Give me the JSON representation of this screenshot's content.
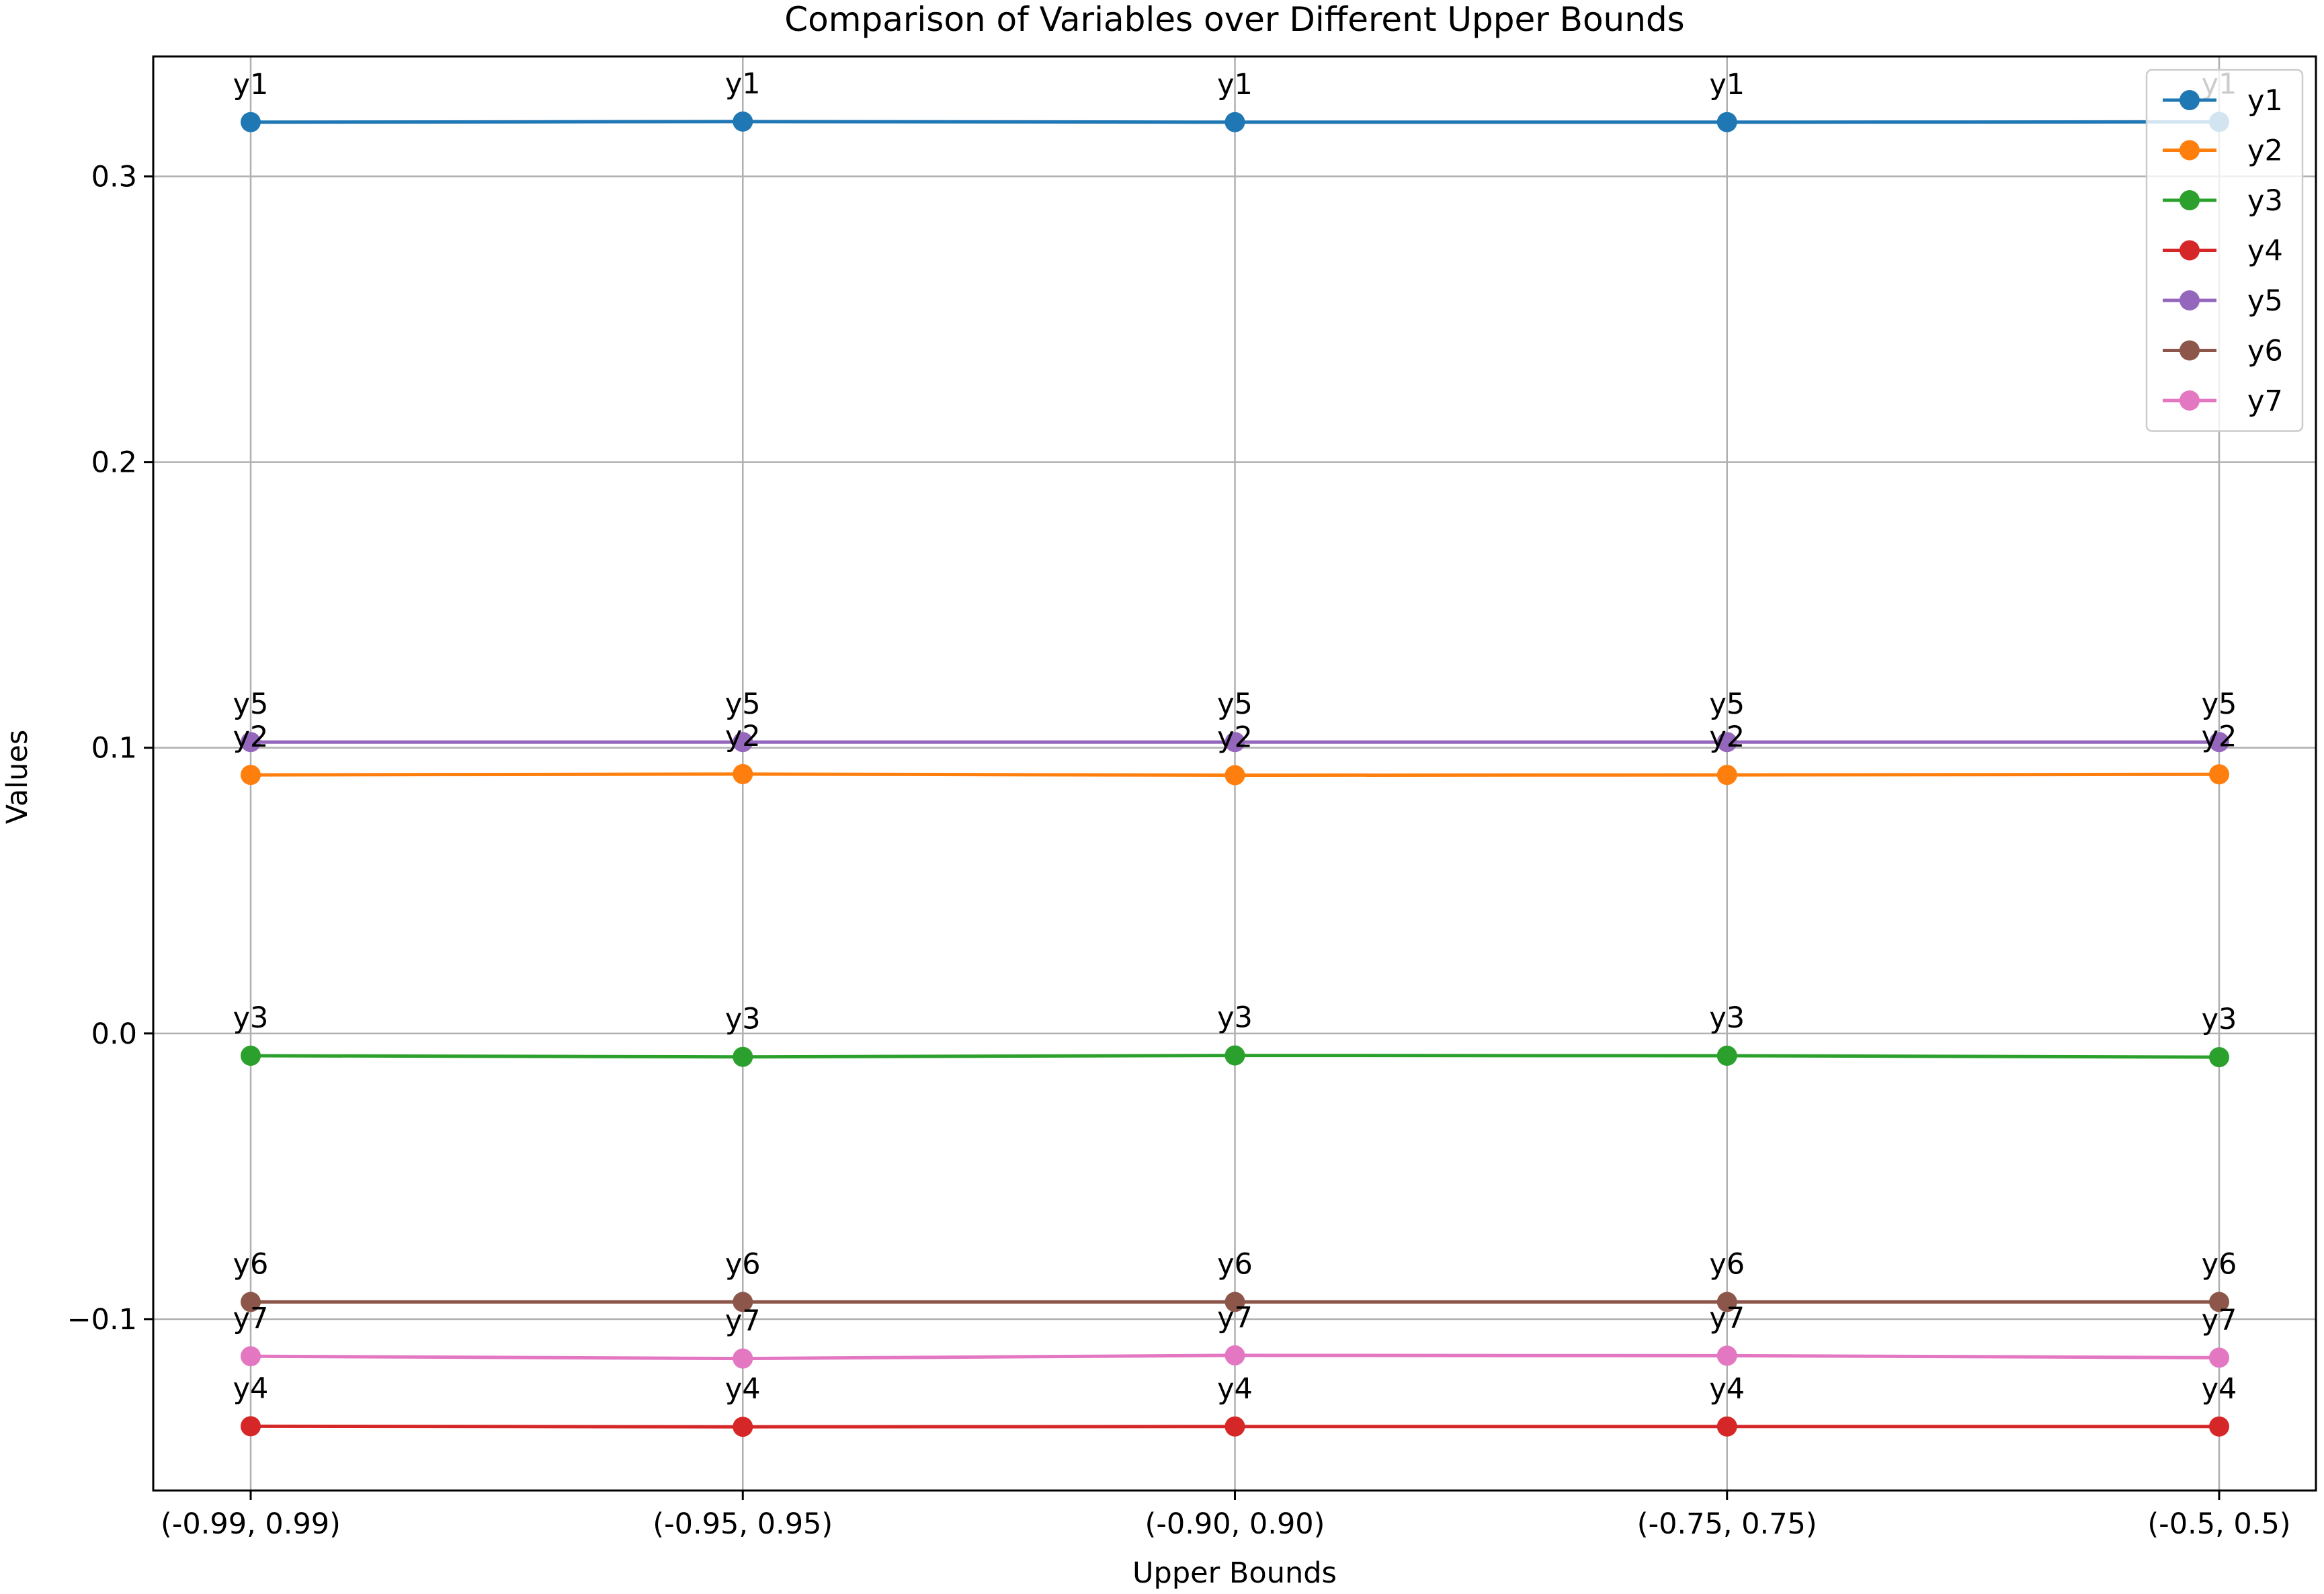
{
  "colors": {
    "y1": "#1f77b4",
    "y2": "#ff7f0e",
    "y3": "#2ca02c",
    "y4": "#d62728",
    "y5": "#9467bd",
    "y6": "#8c564b",
    "y7": "#e377c2",
    "grid": "#b0b0b0",
    "axis": "#000000"
  },
  "chart_data": {
    "type": "line",
    "title": "Comparison of Variables over Different Upper Bounds",
    "xlabel": "Upper Bounds",
    "ylabel": "Values",
    "categories": [
      "(-0.99, 0.99)",
      "(-0.95, 0.95)",
      "(-0.90, 0.90)",
      "(-0.75, 0.75)",
      "(-0.5, 0.5)"
    ],
    "ylim": [
      -0.16,
      0.342
    ],
    "yticks": [
      -0.1,
      0.0,
      0.1,
      0.2,
      0.3
    ],
    "ytick_labels": [
      "−0.1",
      "0.0",
      "0.1",
      "0.2",
      "0.3"
    ],
    "grid": true,
    "legend_position": "top-right",
    "markers": true,
    "point_labels": true,
    "series": [
      {
        "name": "y1",
        "values": [
          0.319,
          0.3192,
          0.319,
          0.319,
          0.3191
        ]
      },
      {
        "name": "y2",
        "values": [
          0.0905,
          0.0908,
          0.0904,
          0.0905,
          0.0907
        ]
      },
      {
        "name": "y3",
        "values": [
          -0.0078,
          -0.0082,
          -0.0077,
          -0.0078,
          -0.0083
        ]
      },
      {
        "name": "y4",
        "values": [
          -0.1375,
          -0.1377,
          -0.1376,
          -0.1376,
          -0.1376
        ]
      },
      {
        "name": "y5",
        "values": [
          0.102,
          0.102,
          0.102,
          0.102,
          0.102
        ]
      },
      {
        "name": "y6",
        "values": [
          -0.094,
          -0.094,
          -0.094,
          -0.094,
          -0.094
        ]
      },
      {
        "name": "y7",
        "values": [
          -0.113,
          -0.1138,
          -0.1127,
          -0.1128,
          -0.1135
        ]
      }
    ]
  }
}
